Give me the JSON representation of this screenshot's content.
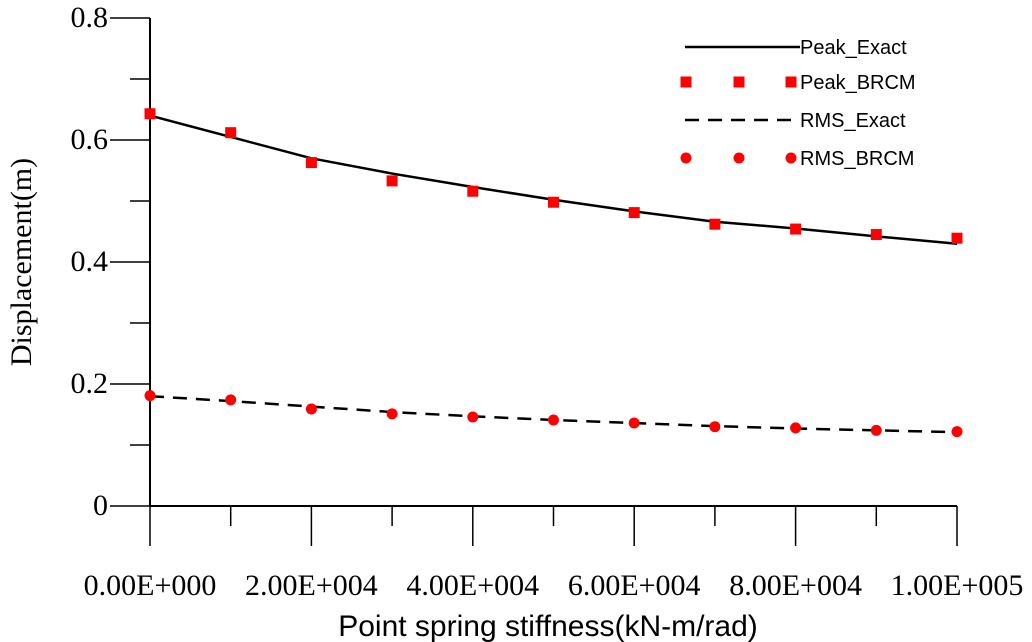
{
  "chart_data": {
    "type": "line",
    "title": "",
    "xlabel": "Point spring stiffness(kN-m/rad)",
    "ylabel": "Displacement(m)",
    "xlim": [
      0,
      100000
    ],
    "ylim": [
      0,
      0.8
    ],
    "x_ticks": [
      0,
      20000,
      40000,
      60000,
      80000,
      100000
    ],
    "x_tick_labels": [
      "0.00E+000",
      "2.00E+004",
      "4.00E+004",
      "6.00E+004",
      "8.00E+004",
      "1.00E+005"
    ],
    "y_ticks": [
      0,
      0.2,
      0.4,
      0.6,
      0.8
    ],
    "y_tick_labels": [
      "0",
      "0.2",
      "0.4",
      "0.6",
      "0.8"
    ],
    "x_minor_ticks": [
      10000,
      30000,
      50000,
      70000,
      90000
    ],
    "y_minor_ticks": [
      0.1,
      0.3,
      0.5,
      0.7
    ],
    "grid": false,
    "legend_position": "top-right",
    "x": [
      0,
      10000,
      20000,
      30000,
      40000,
      50000,
      60000,
      70000,
      80000,
      90000,
      100000
    ],
    "series": [
      {
        "name": "Peak_Exact",
        "style": "solid-line",
        "color": "#000000",
        "values": [
          0.64,
          0.605,
          0.57,
          0.545,
          0.523,
          0.502,
          0.483,
          0.466,
          0.455,
          0.442,
          0.43
        ]
      },
      {
        "name": "Peak_BRCM",
        "style": "square-marker",
        "color": "#ff0000",
        "values": [
          0.643,
          0.612,
          0.563,
          0.533,
          0.516,
          0.498,
          0.481,
          0.462,
          0.454,
          0.445,
          0.439
        ]
      },
      {
        "name": "RMS_Exact",
        "style": "dashed-line",
        "color": "#000000",
        "values": [
          0.18,
          0.172,
          0.163,
          0.154,
          0.147,
          0.141,
          0.136,
          0.131,
          0.127,
          0.124,
          0.121
        ]
      },
      {
        "name": "RMS_BRCM",
        "style": "circle-marker",
        "color": "#ff0000",
        "values": [
          0.181,
          0.174,
          0.159,
          0.151,
          0.146,
          0.141,
          0.136,
          0.13,
          0.128,
          0.124,
          0.122
        ]
      }
    ]
  }
}
